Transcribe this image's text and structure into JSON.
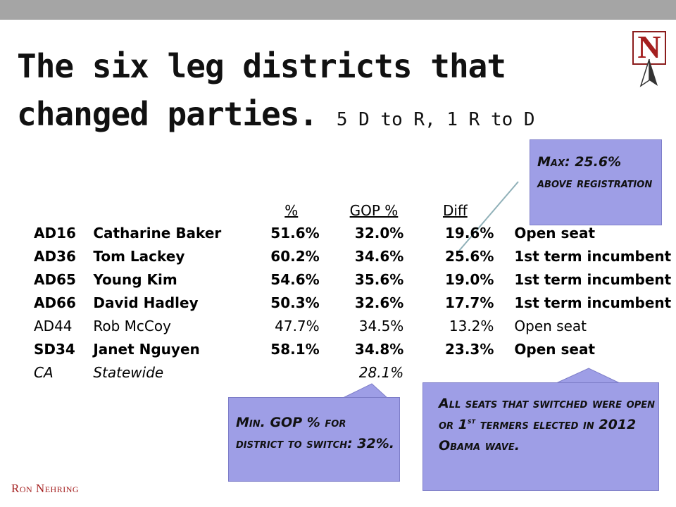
{
  "title": {
    "line1": "The six leg districts that",
    "line2": "changed parties.",
    "subtitle": "5 D to R, 1 R to D"
  },
  "logo": {
    "letter": "N"
  },
  "table": {
    "headers": [
      "",
      "",
      "%",
      "GOP %",
      "Diff",
      ""
    ],
    "rows": [
      {
        "district": "AD16",
        "name": "Catharine Baker",
        "pct": "51.6%",
        "gop": "32.0%",
        "diff": "19.6%",
        "note": "Open seat",
        "style": "bold"
      },
      {
        "district": "AD36",
        "name": "Tom Lackey",
        "pct": "60.2%",
        "gop": "34.6%",
        "diff": "25.6%",
        "note": "1st term incumbent",
        "style": "bold"
      },
      {
        "district": "AD65",
        "name": "Young Kim",
        "pct": "54.6%",
        "gop": "35.6%",
        "diff": "19.0%",
        "note": "1st term incumbent",
        "style": "bold"
      },
      {
        "district": "AD66",
        "name": "David Hadley",
        "pct": "50.3%",
        "gop": "32.6%",
        "diff": "17.7%",
        "note": "1st term incumbent",
        "style": "bold"
      },
      {
        "district": "AD44",
        "name": "Rob McCoy",
        "pct": "47.7%",
        "gop": "34.5%",
        "diff": "13.2%",
        "note": "Open seat",
        "style": "normal"
      },
      {
        "district": "SD34",
        "name": "Janet Nguyen",
        "pct": "58.1%",
        "gop": "34.8%",
        "diff": "23.3%",
        "note": "Open seat",
        "style": "bold"
      },
      {
        "district": "CA",
        "name": "Statewide",
        "pct": "",
        "gop": "28.1%",
        "diff": "",
        "note": "",
        "style": "italic"
      }
    ]
  },
  "callouts": {
    "max": "Max: 25.6% above registration",
    "min": "Min. GOP % for district to switch: 32%.",
    "all_pre": "All seats that switched were open or 1",
    "all_sup": "st",
    "all_post": " termers elected in 2012 Obama wave."
  },
  "footer": {
    "brand": "Ron Nehring"
  },
  "colors": {
    "topbar": "#a5a5a5",
    "callout": "#9e9ee6",
    "brand": "#a41f1f"
  }
}
